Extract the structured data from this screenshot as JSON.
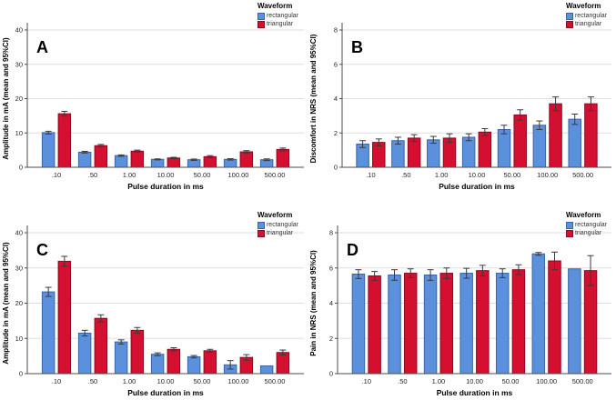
{
  "figure": {
    "legend_title": "Waveform",
    "series_names": [
      "rectangular",
      "triangular"
    ],
    "xlabel": "Pulse duration in ms",
    "colors": {
      "rectangular": "#5B90DC",
      "rectangular_border": "#3964A8",
      "triangular": "#D40F2F",
      "triangular_border": "#8C0A22",
      "gridline": "#DEDEDE",
      "axis": "#4D4D4D",
      "error_bar": "#3A3A3A",
      "text": "#262626"
    }
  },
  "chart_data": [
    {
      "panel": "A",
      "type": "bar",
      "ylabel": "Amplitude in mA (mean and 95%CI)",
      "xlabel": "Pulse duration in ms",
      "categories": [
        ".10",
        ".50",
        "1.00",
        "10.00",
        "50.00",
        "100.00",
        "500.00"
      ],
      "ylim": [
        0,
        40
      ],
      "yticks": [
        0,
        10,
        20,
        30,
        40
      ],
      "grid": true,
      "legend_position": "top-right",
      "legend_title": "Waveform",
      "series": [
        {
          "name": "rectangular",
          "color": "#5B90DC",
          "values": [
            10.1,
            4.4,
            3.4,
            2.3,
            2.2,
            2.3,
            2.2
          ],
          "errors": [
            0.4,
            0.25,
            0.2,
            0.15,
            0.2,
            0.2,
            0.25
          ]
        },
        {
          "name": "triangular",
          "color": "#D40F2F",
          "values": [
            15.6,
            6.3,
            4.7,
            2.7,
            3.1,
            4.5,
            5.2
          ],
          "errors": [
            0.7,
            0.35,
            0.3,
            0.2,
            0.3,
            0.35,
            0.4
          ]
        }
      ]
    },
    {
      "panel": "B",
      "type": "bar",
      "ylabel": "Discomfort in NRS (mean and 95%CI)",
      "xlabel": "Pulse duration in ms",
      "categories": [
        ".10",
        ".50",
        "1.00",
        "10.00",
        "50.00",
        "100.00",
        "500.00"
      ],
      "ylim": [
        0,
        8
      ],
      "yticks": [
        0,
        2,
        4,
        6,
        8
      ],
      "grid": true,
      "legend_position": "top-right",
      "legend_title": "Waveform",
      "series": [
        {
          "name": "rectangular",
          "color": "#5B90DC",
          "values": [
            1.35,
            1.55,
            1.6,
            1.75,
            2.2,
            2.45,
            2.8
          ],
          "errors": [
            0.2,
            0.2,
            0.2,
            0.2,
            0.25,
            0.25,
            0.3
          ]
        },
        {
          "name": "triangular",
          "color": "#D40F2F",
          "values": [
            1.45,
            1.7,
            1.7,
            2.05,
            3.05,
            3.7,
            3.7
          ],
          "errors": [
            0.2,
            0.2,
            0.25,
            0.2,
            0.3,
            0.4,
            0.4
          ]
        }
      ]
    },
    {
      "panel": "C",
      "type": "bar",
      "ylabel": "Amplitude in mA (mean and 95%CI)",
      "xlabel": "Pulse duration in ms",
      "categories": [
        ".10",
        ".50",
        "1.00",
        "10.00",
        "50.00",
        "100.00",
        "500.00"
      ],
      "ylim": [
        0,
        40
      ],
      "yticks": [
        0,
        10,
        20,
        30,
        40
      ],
      "grid": true,
      "legend_position": "top-right",
      "legend_title": "Waveform",
      "series": [
        {
          "name": "rectangular",
          "color": "#5B90DC",
          "values": [
            23.2,
            11.5,
            9.0,
            5.5,
            4.8,
            2.5,
            2.2
          ],
          "errors": [
            1.3,
            0.8,
            0.6,
            0.4,
            0.35,
            1.2,
            0
          ]
        },
        {
          "name": "triangular",
          "color": "#D40F2F",
          "values": [
            31.9,
            15.7,
            12.3,
            6.9,
            6.5,
            4.6,
            6.0
          ],
          "errors": [
            1.4,
            1.0,
            0.8,
            0.45,
            0.4,
            0.8,
            0.7
          ]
        }
      ]
    },
    {
      "panel": "D",
      "type": "bar",
      "ylabel": "Pain in NRS (mean and 95%CI)",
      "xlabel": "Pulse duration in ms",
      "categories": [
        ".10",
        ".50",
        "1.00",
        "10.00",
        "50.00",
        "100.00",
        "500.00"
      ],
      "ylim": [
        0,
        8
      ],
      "yticks": [
        0,
        2,
        4,
        6,
        8
      ],
      "grid": true,
      "legend_position": "top-right",
      "legend_title": "Waveform",
      "series": [
        {
          "name": "rectangular",
          "color": "#5B90DC",
          "values": [
            5.65,
            5.6,
            5.6,
            5.7,
            5.7,
            6.8,
            5.95
          ],
          "errors": [
            0.25,
            0.3,
            0.3,
            0.28,
            0.25,
            0.08,
            0
          ]
        },
        {
          "name": "triangular",
          "color": "#D40F2F",
          "values": [
            5.55,
            5.7,
            5.7,
            5.85,
            5.9,
            6.4,
            5.85
          ],
          "errors": [
            0.25,
            0.25,
            0.3,
            0.3,
            0.28,
            0.5,
            0.85
          ]
        }
      ]
    }
  ]
}
